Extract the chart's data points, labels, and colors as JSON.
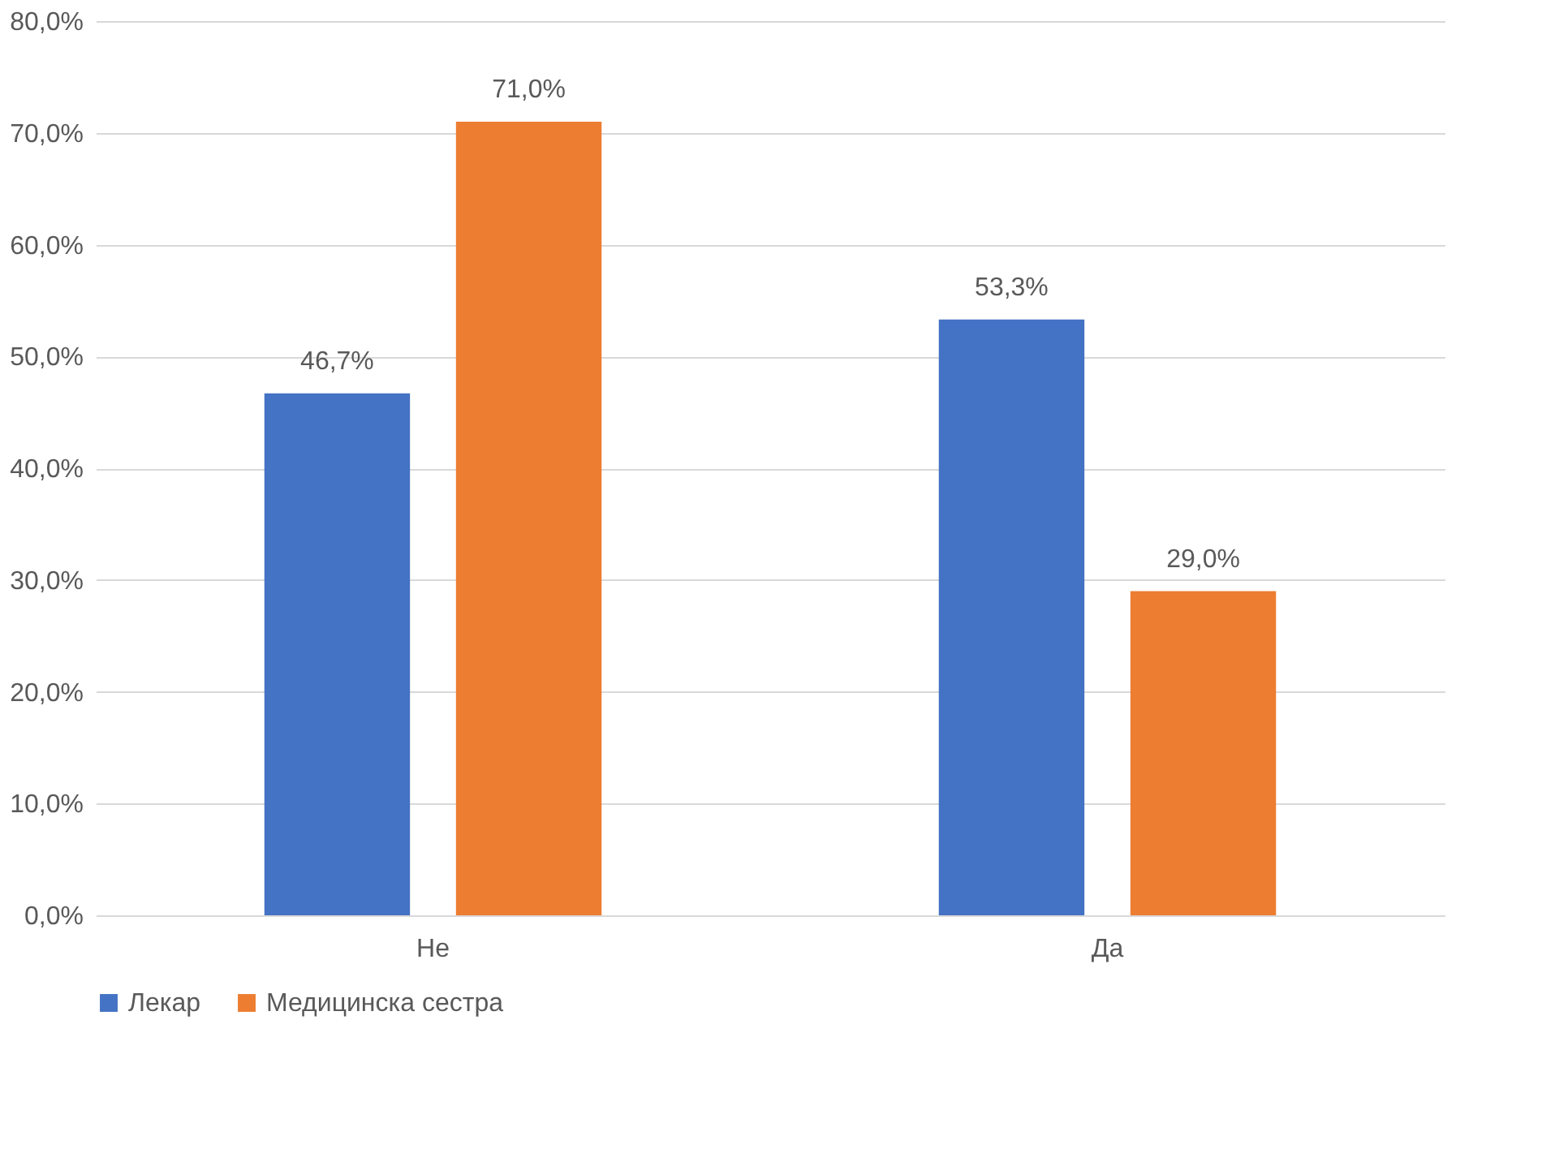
{
  "chart_data": {
    "type": "bar",
    "categories": [
      "Не",
      "Да"
    ],
    "series": [
      {
        "name": "Лекар",
        "color": "#4472c4",
        "values": [
          46.7,
          53.3
        ],
        "value_labels": [
          "46,7%",
          "53,3%"
        ]
      },
      {
        "name": "Медицинска сестра",
        "color": "#ed7d31",
        "values": [
          71.0,
          29.0
        ],
        "value_labels": [
          "71,0%",
          "29,0%"
        ]
      }
    ],
    "ylim": [
      0,
      80
    ],
    "yticks": [
      {
        "value": 0,
        "label": "0,0%"
      },
      {
        "value": 10,
        "label": "10,0%"
      },
      {
        "value": 20,
        "label": "20,0%"
      },
      {
        "value": 30,
        "label": "30,0%"
      },
      {
        "value": 40,
        "label": "40,0%"
      },
      {
        "value": 50,
        "label": "50,0%"
      },
      {
        "value": 60,
        "label": "60,0%"
      },
      {
        "value": 70,
        "label": "70,0%"
      },
      {
        "value": 80,
        "label": "80,0%"
      }
    ],
    "grid": "y",
    "legend": "bottom"
  }
}
